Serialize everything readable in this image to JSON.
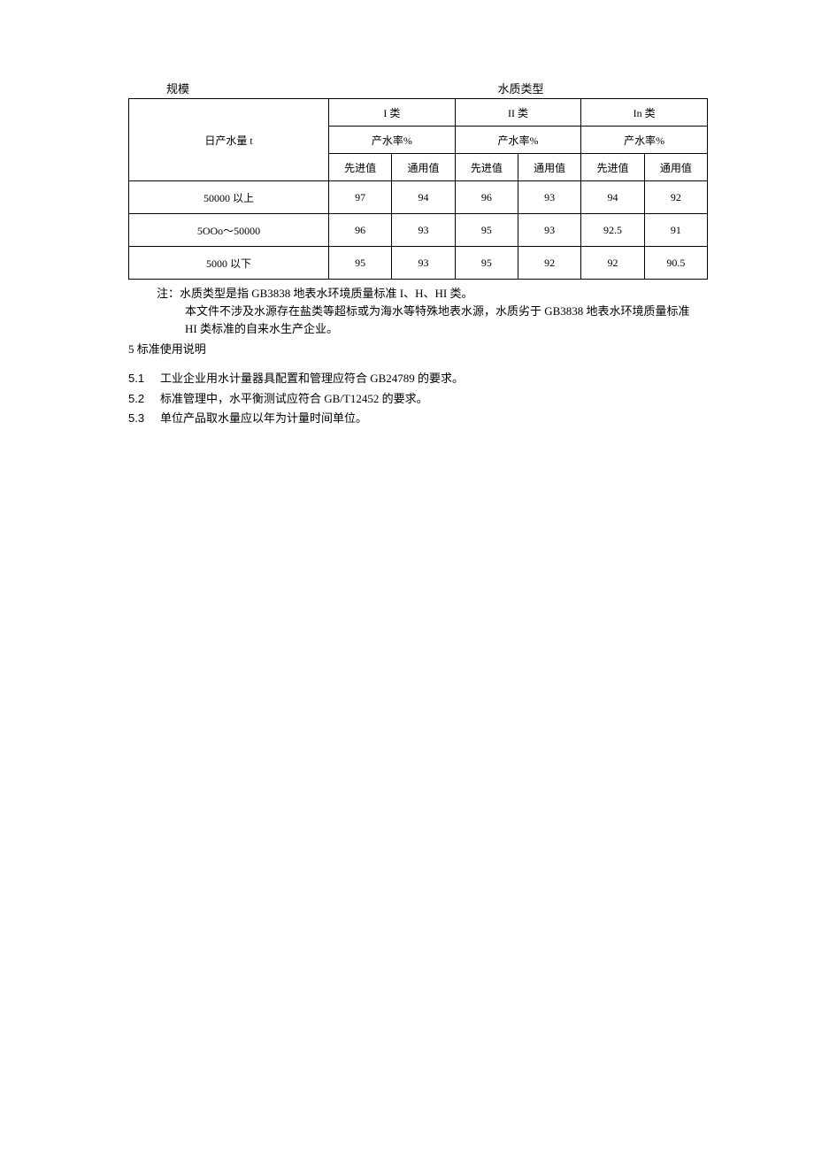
{
  "topLabels": {
    "scale": "规模",
    "waterType": "水质类型"
  },
  "table": {
    "scaleHeader": "日产水量 t",
    "typeLabels": [
      "I 类",
      "II 类",
      "In 类"
    ],
    "rateLabel": "产水率%",
    "subCols": [
      "先进值",
      "通用值"
    ],
    "rows": [
      {
        "scale": "50000 以上",
        "vals": [
          "97",
          "94",
          "96",
          "93",
          "94",
          "92"
        ]
      },
      {
        "scale": "5OOo～50000",
        "vals": [
          "96",
          "93",
          "95",
          "93",
          "92.5",
          "91"
        ]
      },
      {
        "scale": "5000 以下",
        "vals": [
          "95",
          "93",
          "95",
          "92",
          "92",
          "90.5"
        ]
      }
    ]
  },
  "notes": {
    "n1": "注：水质类型是指 GB3838 地表水环境质量标准 I、H、HI 类。",
    "n2": "本文件不涉及水源存在盐类等超标或为海水等特殊地表水源，水质劣于 GB3838 地表水环境质量标准",
    "n3": "HI 类标准的自来水生产企业。"
  },
  "sectionHead": "5 标准使用说明",
  "list": [
    {
      "num": "5.1",
      "txt": "工业企业用水计量器具配置和管理应符合 GB24789 的要求。"
    },
    {
      "num": "5.2",
      "txt": "标准管理中，水平衡测试应符合 GB/T12452 的要求。"
    },
    {
      "num": "5.3",
      "txt": "单位产品取水量应以年为计量时间单位。"
    }
  ]
}
